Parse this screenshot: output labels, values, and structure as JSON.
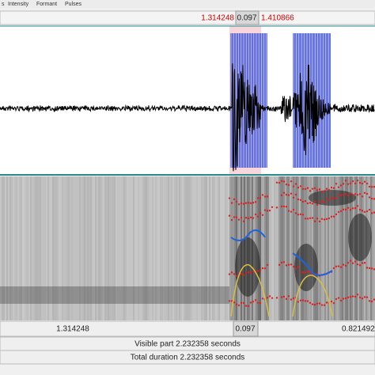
{
  "menu": [
    "s",
    "Intensity",
    "Formant",
    "Pulses"
  ],
  "selection_bar": {
    "start": "1.314248",
    "duration": "0.097",
    "end": "1.410866"
  },
  "time_bar": {
    "start": "1.314248",
    "duration": "0.097",
    "end": "0.821492"
  },
  "visible_part": "Visible part 2.232358 seconds",
  "total_duration": "Total duration 2.232358 seconds"
}
